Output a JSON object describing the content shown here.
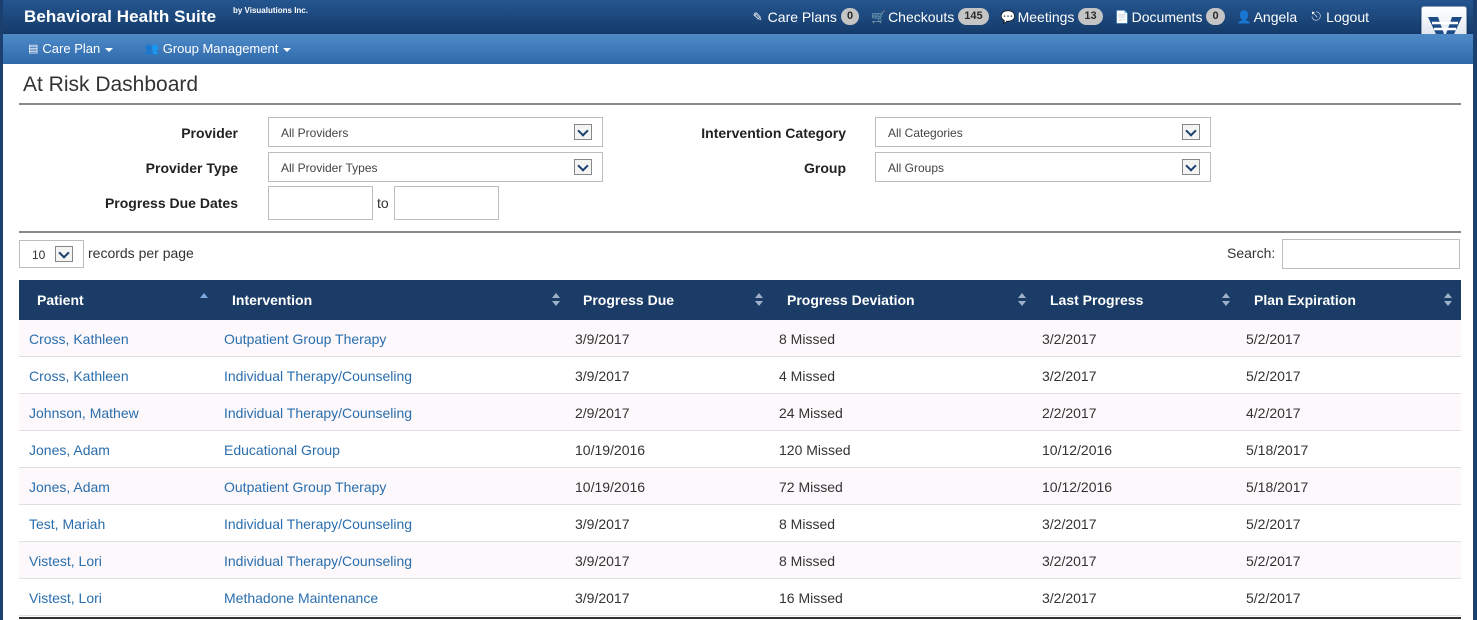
{
  "app": {
    "title": "Behavioral Health Suite",
    "subtitle": "by Visualutions Inc."
  },
  "topnav": [
    {
      "icon": "pencil-icon",
      "glyph": "✎",
      "label": "Care Plans",
      "badge": "0"
    },
    {
      "icon": "cart-icon",
      "glyph": "🛒",
      "label": "Checkouts",
      "badge": "145"
    },
    {
      "icon": "comments-icon",
      "glyph": "💬",
      "label": "Meetings",
      "badge": "13"
    },
    {
      "icon": "document-icon",
      "glyph": "📄",
      "label": "Documents",
      "badge": "0"
    },
    {
      "icon": "user-icon",
      "glyph": "👤",
      "label": "Angela",
      "badge": null
    },
    {
      "icon": "logout-icon",
      "glyph": "⎋",
      "label": "Logout",
      "badge": null
    }
  ],
  "menus": {
    "care_plan": "Care Plan",
    "group_management": "Group Management"
  },
  "page": {
    "title": "At Risk Dashboard"
  },
  "filters": {
    "provider_label": "Provider",
    "provider_value": "All Providers",
    "provider_type_label": "Provider Type",
    "provider_type_value": "All Provider Types",
    "progress_due_label": "Progress Due Dates",
    "to_label": "to",
    "intervention_category_label": "Intervention Category",
    "intervention_category_value": "All Categories",
    "group_label": "Group",
    "group_value": "All Groups"
  },
  "table_controls": {
    "records_value": "10",
    "records_label": "records per page",
    "search_label": "Search:"
  },
  "columns": [
    "Patient",
    "Intervention",
    "Progress Due",
    "Progress Deviation",
    "Last Progress",
    "Plan Expiration"
  ],
  "rows": [
    [
      "Cross, Kathleen",
      "Outpatient Group Therapy",
      "3/9/2017",
      "8 Missed",
      "3/2/2017",
      "5/2/2017"
    ],
    [
      "Cross, Kathleen",
      "Individual Therapy/Counseling",
      "3/9/2017",
      "4 Missed",
      "3/2/2017",
      "5/2/2017"
    ],
    [
      "Johnson, Mathew",
      "Individual Therapy/Counseling",
      "2/9/2017",
      "24 Missed",
      "2/2/2017",
      "4/2/2017"
    ],
    [
      "Jones, Adam",
      "Educational Group",
      "10/19/2016",
      "120 Missed",
      "10/12/2016",
      "5/18/2017"
    ],
    [
      "Jones, Adam",
      "Outpatient Group Therapy",
      "10/19/2016",
      "72 Missed",
      "10/12/2016",
      "5/18/2017"
    ],
    [
      "Test, Mariah",
      "Individual Therapy/Counseling",
      "3/9/2017",
      "8 Missed",
      "3/2/2017",
      "5/2/2017"
    ],
    [
      "Vistest, Lori",
      "Individual Therapy/Counseling",
      "3/9/2017",
      "8 Missed",
      "3/2/2017",
      "5/2/2017"
    ],
    [
      "Vistest, Lori",
      "Methadone Maintenance",
      "3/9/2017",
      "16 Missed",
      "3/2/2017",
      "5/2/2017"
    ]
  ]
}
